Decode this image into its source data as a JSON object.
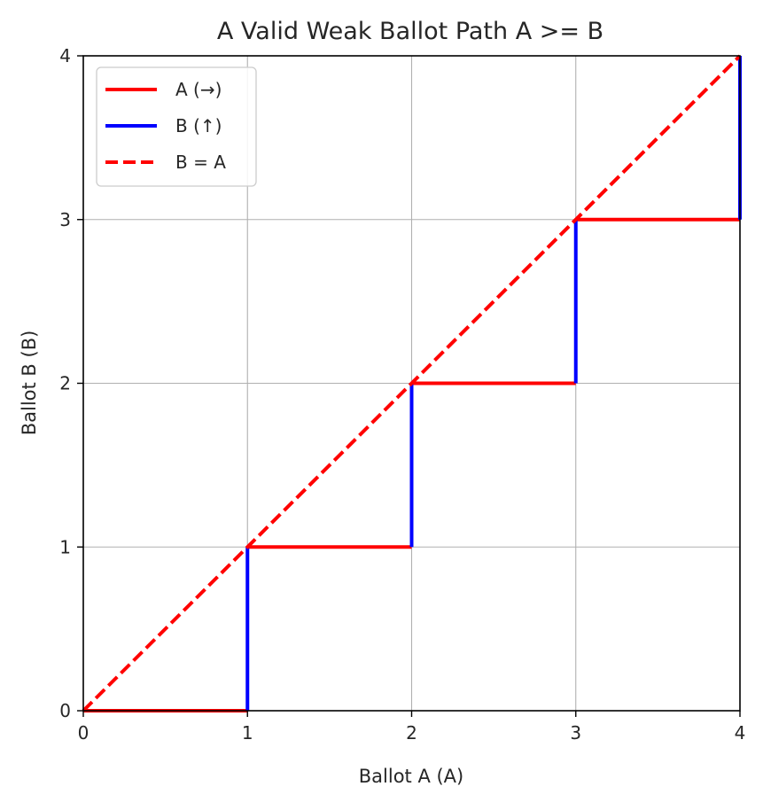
{
  "chart_data": {
    "type": "line",
    "title": "A Valid Weak Ballot Path A >= B",
    "xlabel": "Ballot A (A)",
    "ylabel": "Ballot B (B)",
    "xlim": [
      0,
      4
    ],
    "ylim": [
      0,
      4
    ],
    "xticks": [
      "0",
      "1",
      "2",
      "3",
      "4"
    ],
    "yticks": [
      "0",
      "1",
      "2",
      "3",
      "4"
    ],
    "grid": true,
    "legend_position": "upper-left",
    "series": [
      {
        "name": "A (→)",
        "color": "#ff0000",
        "style": "solid",
        "segments": [
          [
            [
              0,
              0
            ],
            [
              1,
              0
            ]
          ],
          [
            [
              1,
              1
            ],
            [
              2,
              1
            ]
          ],
          [
            [
              2,
              2
            ],
            [
              3,
              2
            ]
          ],
          [
            [
              3,
              3
            ],
            [
              4,
              3
            ]
          ]
        ]
      },
      {
        "name": "B (↑)",
        "color": "#0000ff",
        "style": "solid",
        "segments": [
          [
            [
              1,
              0
            ],
            [
              1,
              1
            ]
          ],
          [
            [
              2,
              1
            ],
            [
              2,
              2
            ]
          ],
          [
            [
              3,
              2
            ],
            [
              3,
              3
            ]
          ],
          [
            [
              4,
              3
            ],
            [
              4,
              4
            ]
          ]
        ]
      },
      {
        "name": "B = A",
        "color": "#ff0000",
        "style": "dashed",
        "segments": [
          [
            [
              0,
              0
            ],
            [
              4,
              4
            ]
          ]
        ]
      }
    ]
  }
}
